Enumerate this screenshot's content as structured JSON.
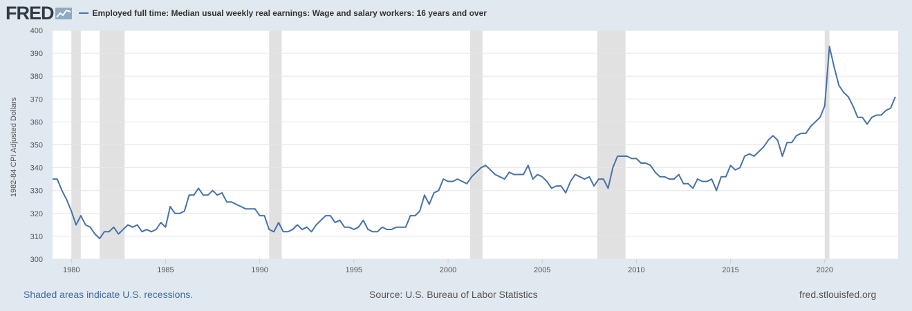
{
  "header": {
    "logo_text": "FRED",
    "series_title": "Employed full time: Median usual weekly real earnings: Wage and salary workers: 16 years and over"
  },
  "footer": {
    "recession_note": "Shaded areas indicate U.S. recessions.",
    "source": "Source: U.S. Bureau of Labor Statistics",
    "site": "fred.stlouisfed.org"
  },
  "colors": {
    "line": "#4572a7",
    "recession": "#e1e1e1",
    "background": "#e1e9f0",
    "plot": "#ffffff"
  },
  "chart_data": {
    "type": "line",
    "title": "",
    "xlabel": "",
    "ylabel": "1982-84 CPI Adjusted Dollars",
    "xlim": [
      1979.0,
      2023.9
    ],
    "ylim": [
      300,
      400
    ],
    "yticks": [
      300,
      310,
      320,
      330,
      340,
      350,
      360,
      370,
      380,
      390,
      400
    ],
    "xticks": [
      1980,
      1985,
      1990,
      1995,
      2000,
      2005,
      2010,
      2015,
      2020
    ],
    "grid": true,
    "legend": "top-left",
    "recessions": [
      [
        1980.0,
        1980.5
      ],
      [
        1981.5,
        1982.83
      ],
      [
        1990.5,
        1991.17
      ],
      [
        2001.17,
        2001.83
      ],
      [
        2007.92,
        2009.42
      ],
      [
        2020.0,
        2020.25
      ]
    ],
    "series": [
      {
        "name": "Employed full time: Median usual weekly real earnings: Wage and salary workers: 16 years and over",
        "x": [
          1979.0,
          1979.25,
          1979.5,
          1979.75,
          1980.0,
          1980.25,
          1980.5,
          1980.75,
          1981.0,
          1981.25,
          1981.5,
          1981.75,
          1982.0,
          1982.25,
          1982.5,
          1982.75,
          1983.0,
          1983.25,
          1983.5,
          1983.75,
          1984.0,
          1984.25,
          1984.5,
          1984.75,
          1985.0,
          1985.25,
          1985.5,
          1985.75,
          1986.0,
          1986.25,
          1986.5,
          1986.75,
          1987.0,
          1987.25,
          1987.5,
          1987.75,
          1988.0,
          1988.25,
          1988.5,
          1988.75,
          1989.0,
          1989.25,
          1989.5,
          1989.75,
          1990.0,
          1990.25,
          1990.5,
          1990.75,
          1991.0,
          1991.25,
          1991.5,
          1991.75,
          1992.0,
          1992.25,
          1992.5,
          1992.75,
          1993.0,
          1993.25,
          1993.5,
          1993.75,
          1994.0,
          1994.25,
          1994.5,
          1994.75,
          1995.0,
          1995.25,
          1995.5,
          1995.75,
          1996.0,
          1996.25,
          1996.5,
          1996.75,
          1997.0,
          1997.25,
          1997.5,
          1997.75,
          1998.0,
          1998.25,
          1998.5,
          1998.75,
          1999.0,
          1999.25,
          1999.5,
          1999.75,
          2000.0,
          2000.25,
          2000.5,
          2000.75,
          2001.0,
          2001.25,
          2001.5,
          2001.75,
          2002.0,
          2002.25,
          2002.5,
          2002.75,
          2003.0,
          2003.25,
          2003.5,
          2003.75,
          2004.0,
          2004.25,
          2004.5,
          2004.75,
          2005.0,
          2005.25,
          2005.5,
          2005.75,
          2006.0,
          2006.25,
          2006.5,
          2006.75,
          2007.0,
          2007.25,
          2007.5,
          2007.75,
          2008.0,
          2008.25,
          2008.5,
          2008.75,
          2009.0,
          2009.25,
          2009.5,
          2009.75,
          2010.0,
          2010.25,
          2010.5,
          2010.75,
          2011.0,
          2011.25,
          2011.5,
          2011.75,
          2012.0,
          2012.25,
          2012.5,
          2012.75,
          2013.0,
          2013.25,
          2013.5,
          2013.75,
          2014.0,
          2014.25,
          2014.5,
          2014.75,
          2015.0,
          2015.25,
          2015.5,
          2015.75,
          2016.0,
          2016.25,
          2016.5,
          2016.75,
          2017.0,
          2017.25,
          2017.5,
          2017.75,
          2018.0,
          2018.25,
          2018.5,
          2018.75,
          2019.0,
          2019.25,
          2019.5,
          2019.75,
          2020.0,
          2020.25,
          2020.5,
          2020.75,
          2021.0,
          2021.25,
          2021.5,
          2021.75,
          2022.0,
          2022.25,
          2022.5,
          2022.75,
          2023.0,
          2023.25,
          2023.5,
          2023.75
        ],
        "y": [
          335,
          335,
          330,
          326,
          321,
          315,
          319,
          315,
          314,
          311,
          309,
          312,
          312,
          314,
          311,
          313,
          315,
          314,
          315,
          312,
          313,
          312,
          313,
          316,
          314,
          323,
          320,
          320,
          321,
          328,
          328,
          331,
          328,
          328,
          330,
          328,
          329,
          325,
          325,
          324,
          323,
          322,
          322,
          322,
          319,
          319,
          313,
          312,
          316,
          312,
          312,
          313,
          315,
          313,
          314,
          312,
          315,
          317,
          319,
          319,
          316,
          317,
          314,
          314,
          313,
          314,
          317,
          313,
          312,
          312,
          314,
          313,
          313,
          314,
          314,
          314,
          319,
          319,
          321,
          328,
          324,
          329,
          330,
          335,
          334,
          334,
          335,
          334,
          333,
          336,
          338,
          340,
          341,
          339,
          337,
          336,
          335,
          338,
          337,
          337,
          337,
          341,
          335,
          337,
          336,
          334,
          331,
          332,
          332,
          329,
          334,
          337,
          336,
          335,
          336,
          332,
          335,
          335,
          331,
          340,
          345,
          345,
          345,
          344,
          344,
          342,
          342,
          341,
          338,
          336,
          336,
          335,
          335,
          337,
          333,
          333,
          331,
          335,
          334,
          334,
          335,
          330,
          336,
          336,
          341,
          339,
          340,
          345,
          346,
          345,
          347,
          349,
          352,
          354,
          352,
          345,
          351,
          351,
          354,
          355,
          355,
          358,
          360,
          362,
          367,
          393,
          384,
          376,
          373,
          371,
          367,
          362,
          362,
          359,
          362,
          363,
          363,
          365,
          366,
          371
        ]
      }
    ]
  }
}
